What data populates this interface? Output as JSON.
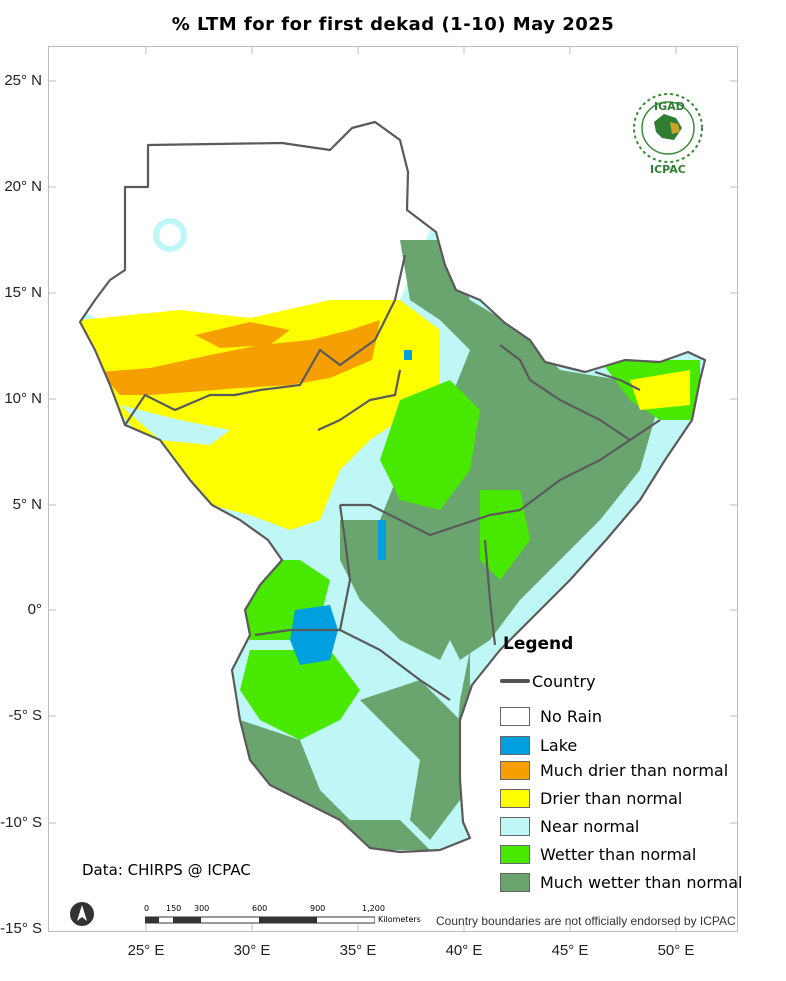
{
  "title": "% LTM  for   for   first dekad (1-10)  May 2025",
  "axes": {
    "lat_labels": [
      "25° N",
      "20° N",
      "15° N",
      "10° N",
      "5° N",
      "0°",
      "-5° S",
      "-10° S",
      "-15° S"
    ],
    "lon_labels": [
      "25° E",
      "30° E",
      "35° E",
      "40° E",
      "45° E",
      "50° E"
    ]
  },
  "legend": {
    "title": "Legend",
    "country": "Country",
    "items": [
      {
        "label": "No Rain",
        "color": "#ffffff"
      },
      {
        "label": "Lake",
        "color": "#00a0e0"
      },
      {
        "label": "Much drier than normal",
        "color": "#f5a000"
      },
      {
        "label": "Drier than normal",
        "color": "#ffff00"
      },
      {
        "label": "Near normal",
        "color": "#bff7f7"
      },
      {
        "label": "Wetter than normal",
        "color": "#48e800"
      },
      {
        "label": "Much wetter than normal",
        "color": "#6aa46e"
      }
    ]
  },
  "data_source": "Data: CHIRPS @ ICPAC",
  "disclaimer": "Country boundaries are not officially endorsed by ICPAC",
  "scale_bar": {
    "ticks": [
      "0",
      "150",
      "300",
      "600",
      "900",
      "1,200"
    ],
    "unit": "Kilometers"
  },
  "logo": {
    "top_text": "IGAD",
    "bottom_text": "ICPAC"
  },
  "colors": {
    "border": "#555555",
    "frame": "#bdbdbd"
  }
}
